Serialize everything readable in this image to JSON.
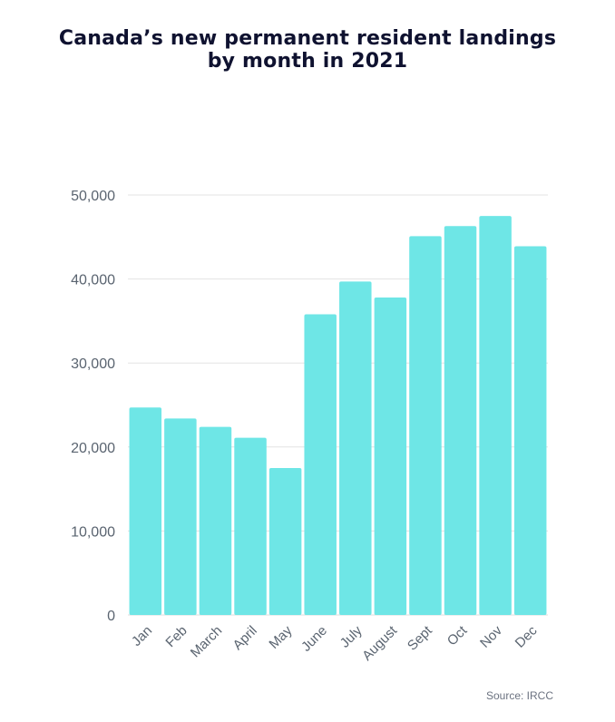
{
  "chart_data": {
    "type": "bar",
    "title_lines": [
      "Canada’s new permanent resident landings",
      "by month in 2021"
    ],
    "categories": [
      "Jan",
      "Feb",
      "March",
      "April",
      "May",
      "June",
      "July",
      "August",
      "Sept",
      "Oct",
      "Nov",
      "Dec"
    ],
    "values": [
      24700,
      23400,
      22400,
      21100,
      17500,
      35800,
      39700,
      37800,
      45100,
      46300,
      47500,
      43900
    ],
    "ylim": [
      0,
      50000
    ],
    "y_ticks": [
      0,
      10000,
      20000,
      30000,
      40000,
      50000
    ],
    "y_tick_labels": [
      "0",
      "10,000",
      "20,000",
      "30,000",
      "40,000",
      "50,000"
    ],
    "xlabel": "",
    "ylabel": "",
    "bar_color": "#6ee6e6",
    "grid": true,
    "source": "Source: IRCC"
  }
}
